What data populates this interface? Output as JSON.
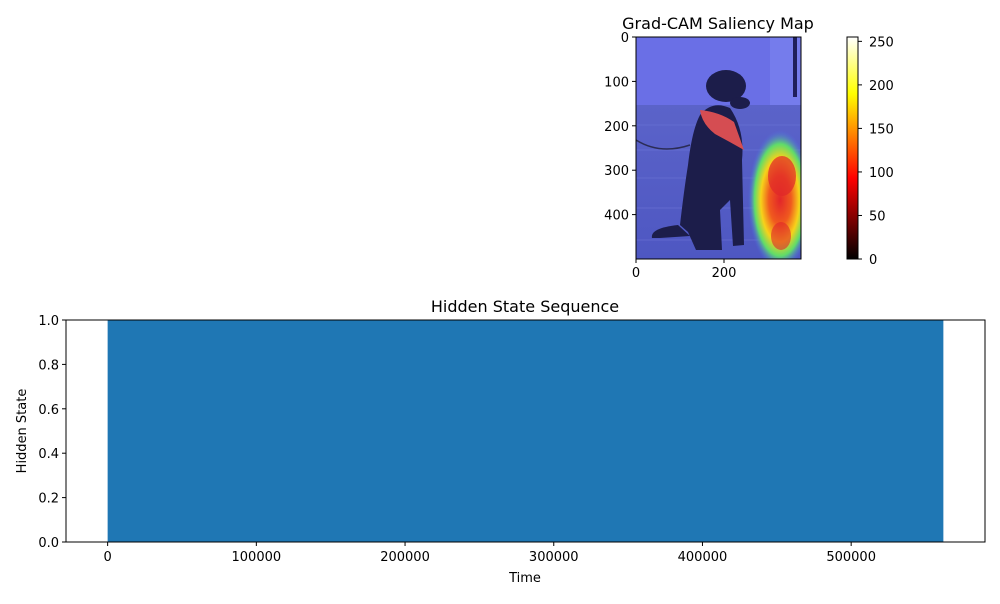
{
  "chart_data": [
    {
      "type": "heatmap",
      "title": "Grad-CAM Saliency Map",
      "image_description_icon": "dog-photo-with-jet-overlay",
      "xlim": [
        0,
        375
      ],
      "ylim": [
        500,
        0
      ],
      "x_ticks": [
        {
          "value": 0,
          "label": "0"
        },
        {
          "value": 200,
          "label": "200"
        }
      ],
      "y_ticks": [
        {
          "value": 0,
          "label": "0"
        },
        {
          "value": 100,
          "label": "100"
        },
        {
          "value": 200,
          "label": "200"
        },
        {
          "value": 300,
          "label": "300"
        },
        {
          "value": 400,
          "label": "400"
        }
      ],
      "colorbar": {
        "colormap": "hot",
        "range": [
          0,
          255
        ],
        "ticks": [
          {
            "value": 0,
            "label": "0"
          },
          {
            "value": 50,
            "label": "50"
          },
          {
            "value": 100,
            "label": "100"
          },
          {
            "value": 150,
            "label": "150"
          },
          {
            "value": 200,
            "label": "200"
          },
          {
            "value": 250,
            "label": "250"
          }
        ]
      }
    },
    {
      "type": "bar",
      "title": "Hidden State Sequence",
      "xlabel": "Time",
      "ylabel": "Hidden State",
      "xlim": [
        -28000,
        590000
      ],
      "ylim": [
        0,
        1
      ],
      "color": "#1f77b4",
      "fill_range": {
        "x_start": 0,
        "x_end": 562000,
        "value": 1
      },
      "x_ticks": [
        {
          "value": 0,
          "label": "0"
        },
        {
          "value": 100000,
          "label": "100000"
        },
        {
          "value": 200000,
          "label": "200000"
        },
        {
          "value": 300000,
          "label": "300000"
        },
        {
          "value": 400000,
          "label": "400000"
        },
        {
          "value": 500000,
          "label": "500000"
        }
      ],
      "y_ticks": [
        {
          "value": 0,
          "label": "0.0"
        },
        {
          "value": 0.2,
          "label": "0.2"
        },
        {
          "value": 0.4,
          "label": "0.4"
        },
        {
          "value": 0.6,
          "label": "0.6"
        },
        {
          "value": 0.8,
          "label": "0.8"
        },
        {
          "value": 1.0,
          "label": "1.0"
        }
      ]
    }
  ]
}
